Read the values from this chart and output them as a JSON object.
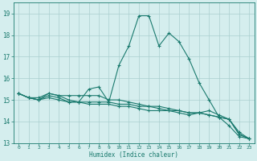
{
  "xlabel": "Humidex (Indice chaleur)",
  "bg_color": "#d5eeee",
  "grid_color": "#aacfcf",
  "line_color": "#1a7a6e",
  "xlim": [
    -0.5,
    23.5
  ],
  "ylim": [
    13,
    19.5
  ],
  "yticks": [
    13,
    14,
    15,
    16,
    17,
    18,
    19
  ],
  "xticks": [
    0,
    1,
    2,
    3,
    4,
    5,
    6,
    7,
    8,
    9,
    10,
    11,
    12,
    13,
    14,
    15,
    16,
    17,
    18,
    19,
    20,
    21,
    22,
    23
  ],
  "series": [
    [
      15.3,
      15.1,
      15.1,
      15.3,
      15.2,
      15.0,
      14.9,
      15.5,
      15.6,
      14.9,
      16.6,
      17.5,
      18.9,
      18.9,
      17.5,
      18.1,
      17.7,
      16.9,
      15.8,
      15.0,
      14.2,
      13.8,
      13.3,
      13.2
    ],
    [
      15.3,
      15.1,
      15.0,
      15.1,
      15.0,
      14.9,
      14.9,
      14.9,
      14.9,
      14.9,
      14.8,
      14.8,
      14.7,
      14.7,
      14.7,
      14.6,
      14.5,
      14.4,
      14.4,
      14.3,
      14.2,
      14.1,
      13.4,
      13.2
    ],
    [
      15.3,
      15.1,
      15.0,
      15.2,
      15.1,
      14.9,
      14.9,
      14.8,
      14.8,
      14.8,
      14.7,
      14.7,
      14.6,
      14.5,
      14.5,
      14.5,
      14.4,
      14.3,
      14.4,
      14.5,
      14.3,
      14.1,
      13.5,
      13.2
    ],
    [
      15.3,
      15.1,
      15.0,
      15.3,
      15.2,
      15.2,
      15.2,
      15.2,
      15.2,
      15.0,
      15.0,
      14.9,
      14.8,
      14.7,
      14.6,
      14.5,
      14.5,
      14.4,
      14.4,
      14.3,
      14.2,
      14.1,
      13.4,
      13.2
    ]
  ]
}
